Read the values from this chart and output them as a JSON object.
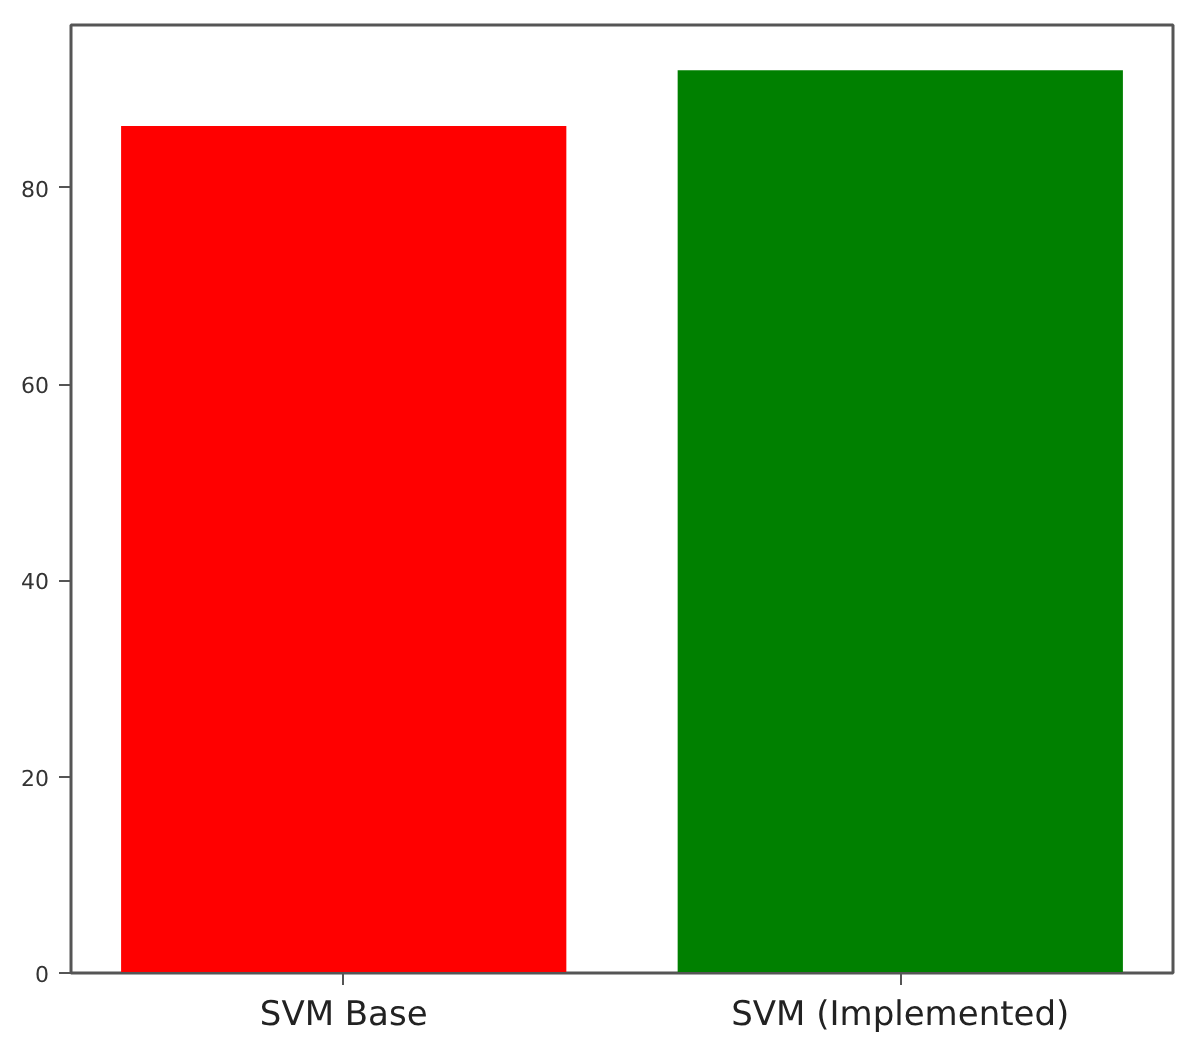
{
  "chart_data": {
    "type": "bar",
    "categories": [
      "SVM Base",
      "SVM (Implemented)"
    ],
    "values": [
      86.3,
      92.0
    ],
    "colors": [
      "#ff0000",
      "#008000"
    ],
    "ylim": [
      0,
      96.6
    ],
    "yticks": [
      0,
      20,
      40,
      60,
      80
    ],
    "grid": false
  }
}
